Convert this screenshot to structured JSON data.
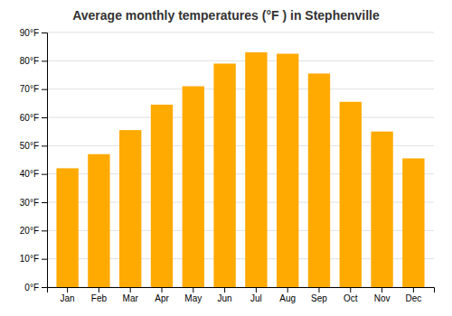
{
  "chart_data": {
    "type": "bar",
    "title": "Average monthly temperatures (°F ) in Stephenville",
    "categories": [
      "Jan",
      "Feb",
      "Mar",
      "Apr",
      "May",
      "Jun",
      "Jul",
      "Aug",
      "Sep",
      "Oct",
      "Nov",
      "Dec"
    ],
    "values": [
      42,
      47,
      55.5,
      64.5,
      71,
      79,
      83,
      82.5,
      75.5,
      65.5,
      55,
      45.5
    ],
    "color": "#FFAA00",
    "ylim": [
      0,
      90
    ],
    "yticks": [
      {
        "value": 0,
        "label": "0°F"
      },
      {
        "value": 10,
        "label": "10°F"
      },
      {
        "value": 20,
        "label": "20°F"
      },
      {
        "value": 30,
        "label": "30°F"
      },
      {
        "value": 40,
        "label": "40°F"
      },
      {
        "value": 50,
        "label": "50°F"
      },
      {
        "value": 60,
        "label": "60°F"
      },
      {
        "value": 70,
        "label": "70°F"
      },
      {
        "value": 80,
        "label": "80°F"
      },
      {
        "value": 90,
        "label": "90°F"
      }
    ],
    "grid": true
  }
}
